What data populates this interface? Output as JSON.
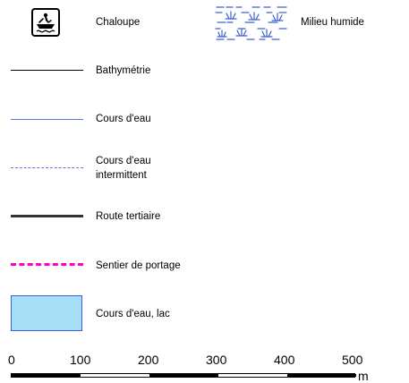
{
  "legend": {
    "chaloupe": "Chaloupe",
    "milieu_humide": "Milieu humide",
    "bathymetrie": "Bathymétrie",
    "cours_eau": "Cours d'eau",
    "cours_eau_intermittent_line1": "Cours d'eau",
    "cours_eau_intermittent_line2": "intermittent",
    "route_tertiaire": "Route tertiaire",
    "sentier_portage": "Sentier de portage",
    "cours_eau_lac": "Cours d'eau, lac"
  },
  "colors": {
    "water_line": "#5b78d8",
    "road": "#333333",
    "portage": "#ff00cc",
    "lake_fill": "#a6def5",
    "lake_border": "#3c5fd4",
    "wetland_blue": "#3c5fd4"
  },
  "icons": {
    "chaloupe": "boat-icon",
    "milieu_humide": "wetland-pattern-icon"
  },
  "scale": {
    "ticks": [
      "0",
      "100",
      "200",
      "300",
      "400",
      "500"
    ],
    "unit": "m"
  }
}
